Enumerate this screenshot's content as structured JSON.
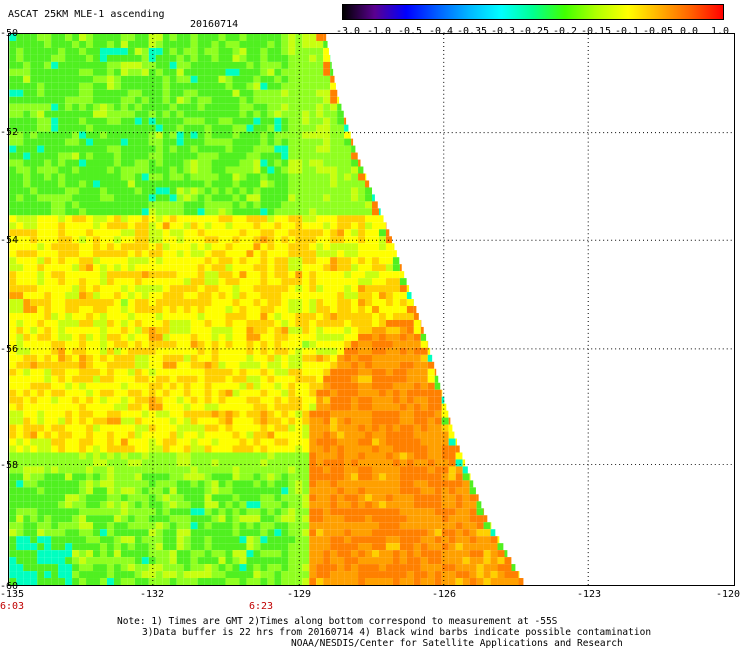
{
  "header": {
    "title": "ASCAT 25KM MLE-1 ascending",
    "date": "20160714"
  },
  "colorbar": {
    "labels": [
      "-3.0",
      "-1.0",
      "-0.5",
      "-0.4",
      "-0.35",
      "-0.3",
      "-0.25",
      "-0.2",
      "-0.15",
      "-0.1",
      "-0.05",
      "0.0",
      "1.0"
    ],
    "colors": [
      "#000000",
      "#5a0090",
      "#0000ff",
      "#0060ff",
      "#00b8ff",
      "#00ffff",
      "#00ff90",
      "#40ff00",
      "#b0ff00",
      "#ffff00",
      "#ffb000",
      "#ff6000",
      "#ff0000"
    ]
  },
  "map": {
    "lat_labels": [
      "-50",
      "-52",
      "-54",
      "-56",
      "-58",
      "-60"
    ],
    "lon_labels": [
      "-135",
      "-132",
      "-129",
      "-126",
      "-123",
      "-120"
    ],
    "time_labels": [
      "6:03",
      "6:23"
    ],
    "palette": {
      "green": "#50f020",
      "light_green": "#90ff20",
      "yellow_green": "#c8ff10",
      "yellow": "#ffff00",
      "gold": "#ffd000",
      "orange": "#ffa000",
      "dark_orange": "#ff8000",
      "cyan": "#00ffc0"
    }
  },
  "notes": {
    "line1": "Note: 1) Times are GMT 2)Times along bottom correspond to measurement at -55S",
    "line2": "3)Data buffer is 22 hrs from 20160714 4) Black wind barbs indicate possible contamination",
    "line3": "NOAA/NESDIS/Center for Satellite Applications and Research"
  }
}
